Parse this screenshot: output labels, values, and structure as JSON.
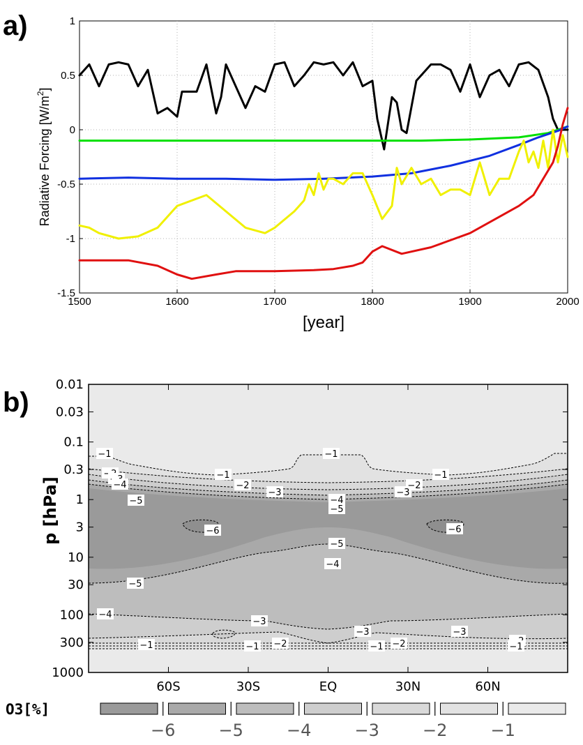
{
  "chart_data": [
    {
      "panel": "a)",
      "type": "line",
      "ylabel": "Radiative Forcing [W/m",
      "ylabel_sup": "2",
      "ylabel_end": "]",
      "xlabel": "[year]",
      "xlim": [
        1500,
        2000
      ],
      "ylim": [
        -1.5,
        1
      ],
      "xticks": [
        "1500",
        "1600",
        "1700",
        "1800",
        "1900",
        "2000"
      ],
      "yticks": [
        "1",
        "0.5",
        "0",
        "-0.5",
        "-1",
        "-1.5"
      ],
      "grid": true,
      "series": [
        {
          "color": "#000000",
          "x": [
            1500,
            1510,
            1520,
            1530,
            1540,
            1550,
            1560,
            1570,
            1580,
            1590,
            1600,
            1605,
            1610,
            1620,
            1630,
            1640,
            1645,
            1650,
            1660,
            1670,
            1680,
            1690,
            1700,
            1710,
            1720,
            1730,
            1740,
            1750,
            1760,
            1770,
            1780,
            1790,
            1800,
            1805,
            1812,
            1820,
            1825,
            1830,
            1835,
            1845,
            1860,
            1870,
            1880,
            1890,
            1900,
            1910,
            1920,
            1930,
            1940,
            1950,
            1960,
            1970,
            1980,
            1985,
            1990,
            2000
          ],
          "y": [
            0.5,
            0.6,
            0.4,
            0.6,
            0.62,
            0.6,
            0.4,
            0.55,
            0.15,
            0.2,
            0.12,
            0.35,
            0.35,
            0.35,
            0.6,
            0.15,
            0.3,
            0.6,
            0.4,
            0.2,
            0.4,
            0.35,
            0.6,
            0.62,
            0.4,
            0.5,
            0.62,
            0.6,
            0.62,
            0.5,
            0.62,
            0.4,
            0.45,
            0.1,
            -0.18,
            0.3,
            0.25,
            0.0,
            -0.03,
            0.45,
            0.6,
            0.6,
            0.55,
            0.35,
            0.6,
            0.3,
            0.5,
            0.55,
            0.4,
            0.6,
            0.62,
            0.55,
            0.3,
            0.1,
            0.0,
            0.0
          ]
        },
        {
          "color": "#00e000",
          "x": [
            1500,
            1600,
            1700,
            1800,
            1850,
            1900,
            1950,
            1980,
            2000
          ],
          "y": [
            -0.1,
            -0.1,
            -0.1,
            -0.1,
            -0.1,
            -0.09,
            -0.07,
            -0.03,
            0.03
          ]
        },
        {
          "color": "#1030e0",
          "x": [
            1500,
            1550,
            1600,
            1650,
            1700,
            1750,
            1800,
            1840,
            1880,
            1920,
            1950,
            1970,
            1990,
            2000
          ],
          "y": [
            -0.45,
            -0.44,
            -0.45,
            -0.45,
            -0.46,
            -0.45,
            -0.43,
            -0.4,
            -0.33,
            -0.24,
            -0.14,
            -0.07,
            -0.01,
            0.03
          ]
        },
        {
          "color": "#f0f000",
          "x": [
            1500,
            1510,
            1520,
            1540,
            1560,
            1580,
            1600,
            1630,
            1650,
            1670,
            1690,
            1700,
            1720,
            1730,
            1735,
            1740,
            1745,
            1750,
            1755,
            1760,
            1770,
            1780,
            1790,
            1800,
            1810,
            1820,
            1825,
            1830,
            1840,
            1850,
            1860,
            1870,
            1880,
            1890,
            1900,
            1910,
            1920,
            1930,
            1940,
            1950,
            1955,
            1960,
            1965,
            1970,
            1975,
            1980,
            1985,
            1990,
            1995,
            2000
          ],
          "y": [
            -0.88,
            -0.9,
            -0.95,
            -1.0,
            -0.98,
            -0.9,
            -0.7,
            -0.6,
            -0.75,
            -0.9,
            -0.95,
            -0.9,
            -0.75,
            -0.65,
            -0.5,
            -0.6,
            -0.4,
            -0.55,
            -0.45,
            -0.45,
            -0.5,
            -0.4,
            -0.4,
            -0.6,
            -0.82,
            -0.7,
            -0.35,
            -0.5,
            -0.35,
            -0.5,
            -0.45,
            -0.6,
            -0.55,
            -0.55,
            -0.6,
            -0.3,
            -0.6,
            -0.45,
            -0.45,
            -0.2,
            -0.1,
            -0.3,
            -0.2,
            -0.35,
            -0.1,
            -0.35,
            -0.0,
            -0.3,
            -0.05,
            -0.25
          ]
        },
        {
          "color": "#e01010",
          "x": [
            1500,
            1550,
            1580,
            1600,
            1615,
            1640,
            1660,
            1700,
            1740,
            1760,
            1780,
            1790,
            1800,
            1810,
            1830,
            1860,
            1900,
            1930,
            1950,
            1965,
            1975,
            1985,
            1990,
            1995,
            2000
          ],
          "y": [
            -1.2,
            -1.2,
            -1.25,
            -1.33,
            -1.37,
            -1.33,
            -1.3,
            -1.3,
            -1.29,
            -1.28,
            -1.25,
            -1.22,
            -1.12,
            -1.07,
            -1.14,
            -1.08,
            -0.95,
            -0.8,
            -0.7,
            -0.6,
            -0.45,
            -0.3,
            -0.15,
            0.05,
            0.2
          ]
        }
      ]
    },
    {
      "panel": "b)",
      "type": "heatmap",
      "ylabel": "p  [hPa]",
      "yticks": [
        "0.01",
        "0.03",
        "0.1",
        "0.3",
        "1",
        "3",
        "10",
        "30",
        "100",
        "300",
        "1000"
      ],
      "xticks": [
        "60S",
        "30S",
        "EQ",
        "30N",
        "60N"
      ],
      "colorbar": {
        "title": "O3[%]",
        "labels": [
          "−6",
          "−5",
          "−4",
          "−3",
          "−2",
          "−1"
        ],
        "colors": [
          "#9a9a9a",
          "#a9a9a9",
          "#bdbdbd",
          "#cecece",
          "#d9d9d9",
          "#e2e2e2",
          "#eaeaea"
        ]
      },
      "contour_labels": [
        "−1",
        "−1",
        "−1",
        "−1",
        "−2",
        "−2",
        "−2",
        "−3",
        "−3",
        "−3",
        "−4",
        "−5",
        "−4",
        "−5",
        "−6",
        "−6",
        "−5",
        "−4",
        "−5",
        "−4",
        "−3",
        "−3",
        "−3",
        "−1",
        "−2",
        "−1",
        "−2",
        "−1",
        "−2",
        "−1"
      ]
    }
  ]
}
